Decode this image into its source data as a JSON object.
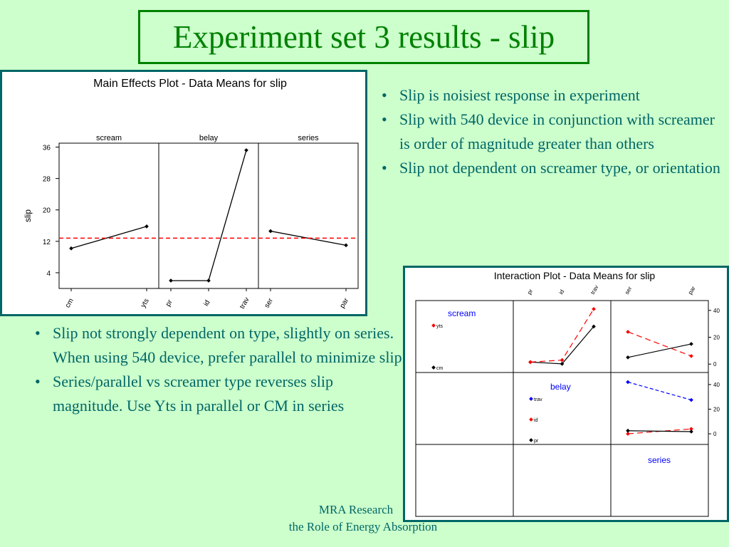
{
  "title": "Experiment set 3 results - slip",
  "bullets_right": [
    "Slip is noisiest response in experiment",
    "Slip with 540 device in conjunction with screamer is order of magnitude greater than others",
    "Slip not dependent on screamer type, or orientation"
  ],
  "bullets_left": [
    "Slip not strongly dependent on type, slightly on series. When using 540 device, prefer parallel to minimize slip",
    "Series/parallel vs screamer type reverses slip magnitude. Use Yts in parallel or CM in series"
  ],
  "footer": {
    "line1": "MRA Research",
    "line2": "the Role of Energy Absorption"
  },
  "colors": {
    "background": "#ccffcc",
    "title": "#008000",
    "text": "#006666",
    "mean_line": "#ff0000"
  },
  "chart_data": [
    {
      "type": "line",
      "title": "Main Effects Plot - Data Means for slip",
      "ylabel": "slip",
      "ylim": [
        0,
        37
      ],
      "yticks": [
        4,
        12,
        20,
        28,
        36
      ],
      "overall_mean": 12.8,
      "panels": [
        {
          "name": "scream",
          "categories": [
            "cm",
            "yts"
          ],
          "values": [
            10.2,
            15.8
          ]
        },
        {
          "name": "belay",
          "categories": [
            "pr",
            "id",
            "trav"
          ],
          "values": [
            2.0,
            2.0,
            35.2
          ]
        },
        {
          "name": "series",
          "categories": [
            "ser",
            "par"
          ],
          "values": [
            14.6,
            11.0
          ]
        }
      ]
    },
    {
      "type": "line",
      "title": "Interaction Plot - Data Means for slip",
      "factors": [
        "scream",
        "belay",
        "series"
      ],
      "levels": {
        "scream": [
          "cm",
          "yts"
        ],
        "belay": [
          "pr",
          "id",
          "trav"
        ],
        "series": [
          "ser",
          "par"
        ]
      },
      "legend_scream": [
        "yts",
        "cm"
      ],
      "legend_belay": [
        "trav",
        "id",
        "pr"
      ],
      "yticks": [
        0,
        20,
        40
      ],
      "cells": [
        {
          "row": "scream",
          "col": "belay",
          "ylim": [
            -2,
            42
          ],
          "series": [
            {
              "name": "cm",
              "values": [
                1.5,
                0.2,
                28.0
              ]
            },
            {
              "name": "yts",
              "values": [
                1.5,
                3.0,
                41.0
              ]
            }
          ]
        },
        {
          "row": "scream",
          "col": "series",
          "ylim": [
            -2,
            42
          ],
          "series": [
            {
              "name": "cm",
              "values": [
                5.0,
                15.0
              ]
            },
            {
              "name": "yts",
              "values": [
                24.0,
                6.0
              ]
            }
          ]
        },
        {
          "row": "belay",
          "col": "series",
          "ylim": [
            -4,
            44
          ],
          "series": [
            {
              "name": "trav",
              "values": [
                42.0,
                27.5
              ]
            },
            {
              "name": "id",
              "values": [
                0.0,
                4.0
              ]
            },
            {
              "name": "pr",
              "values": [
                2.5,
                1.8
              ]
            }
          ]
        }
      ]
    }
  ]
}
